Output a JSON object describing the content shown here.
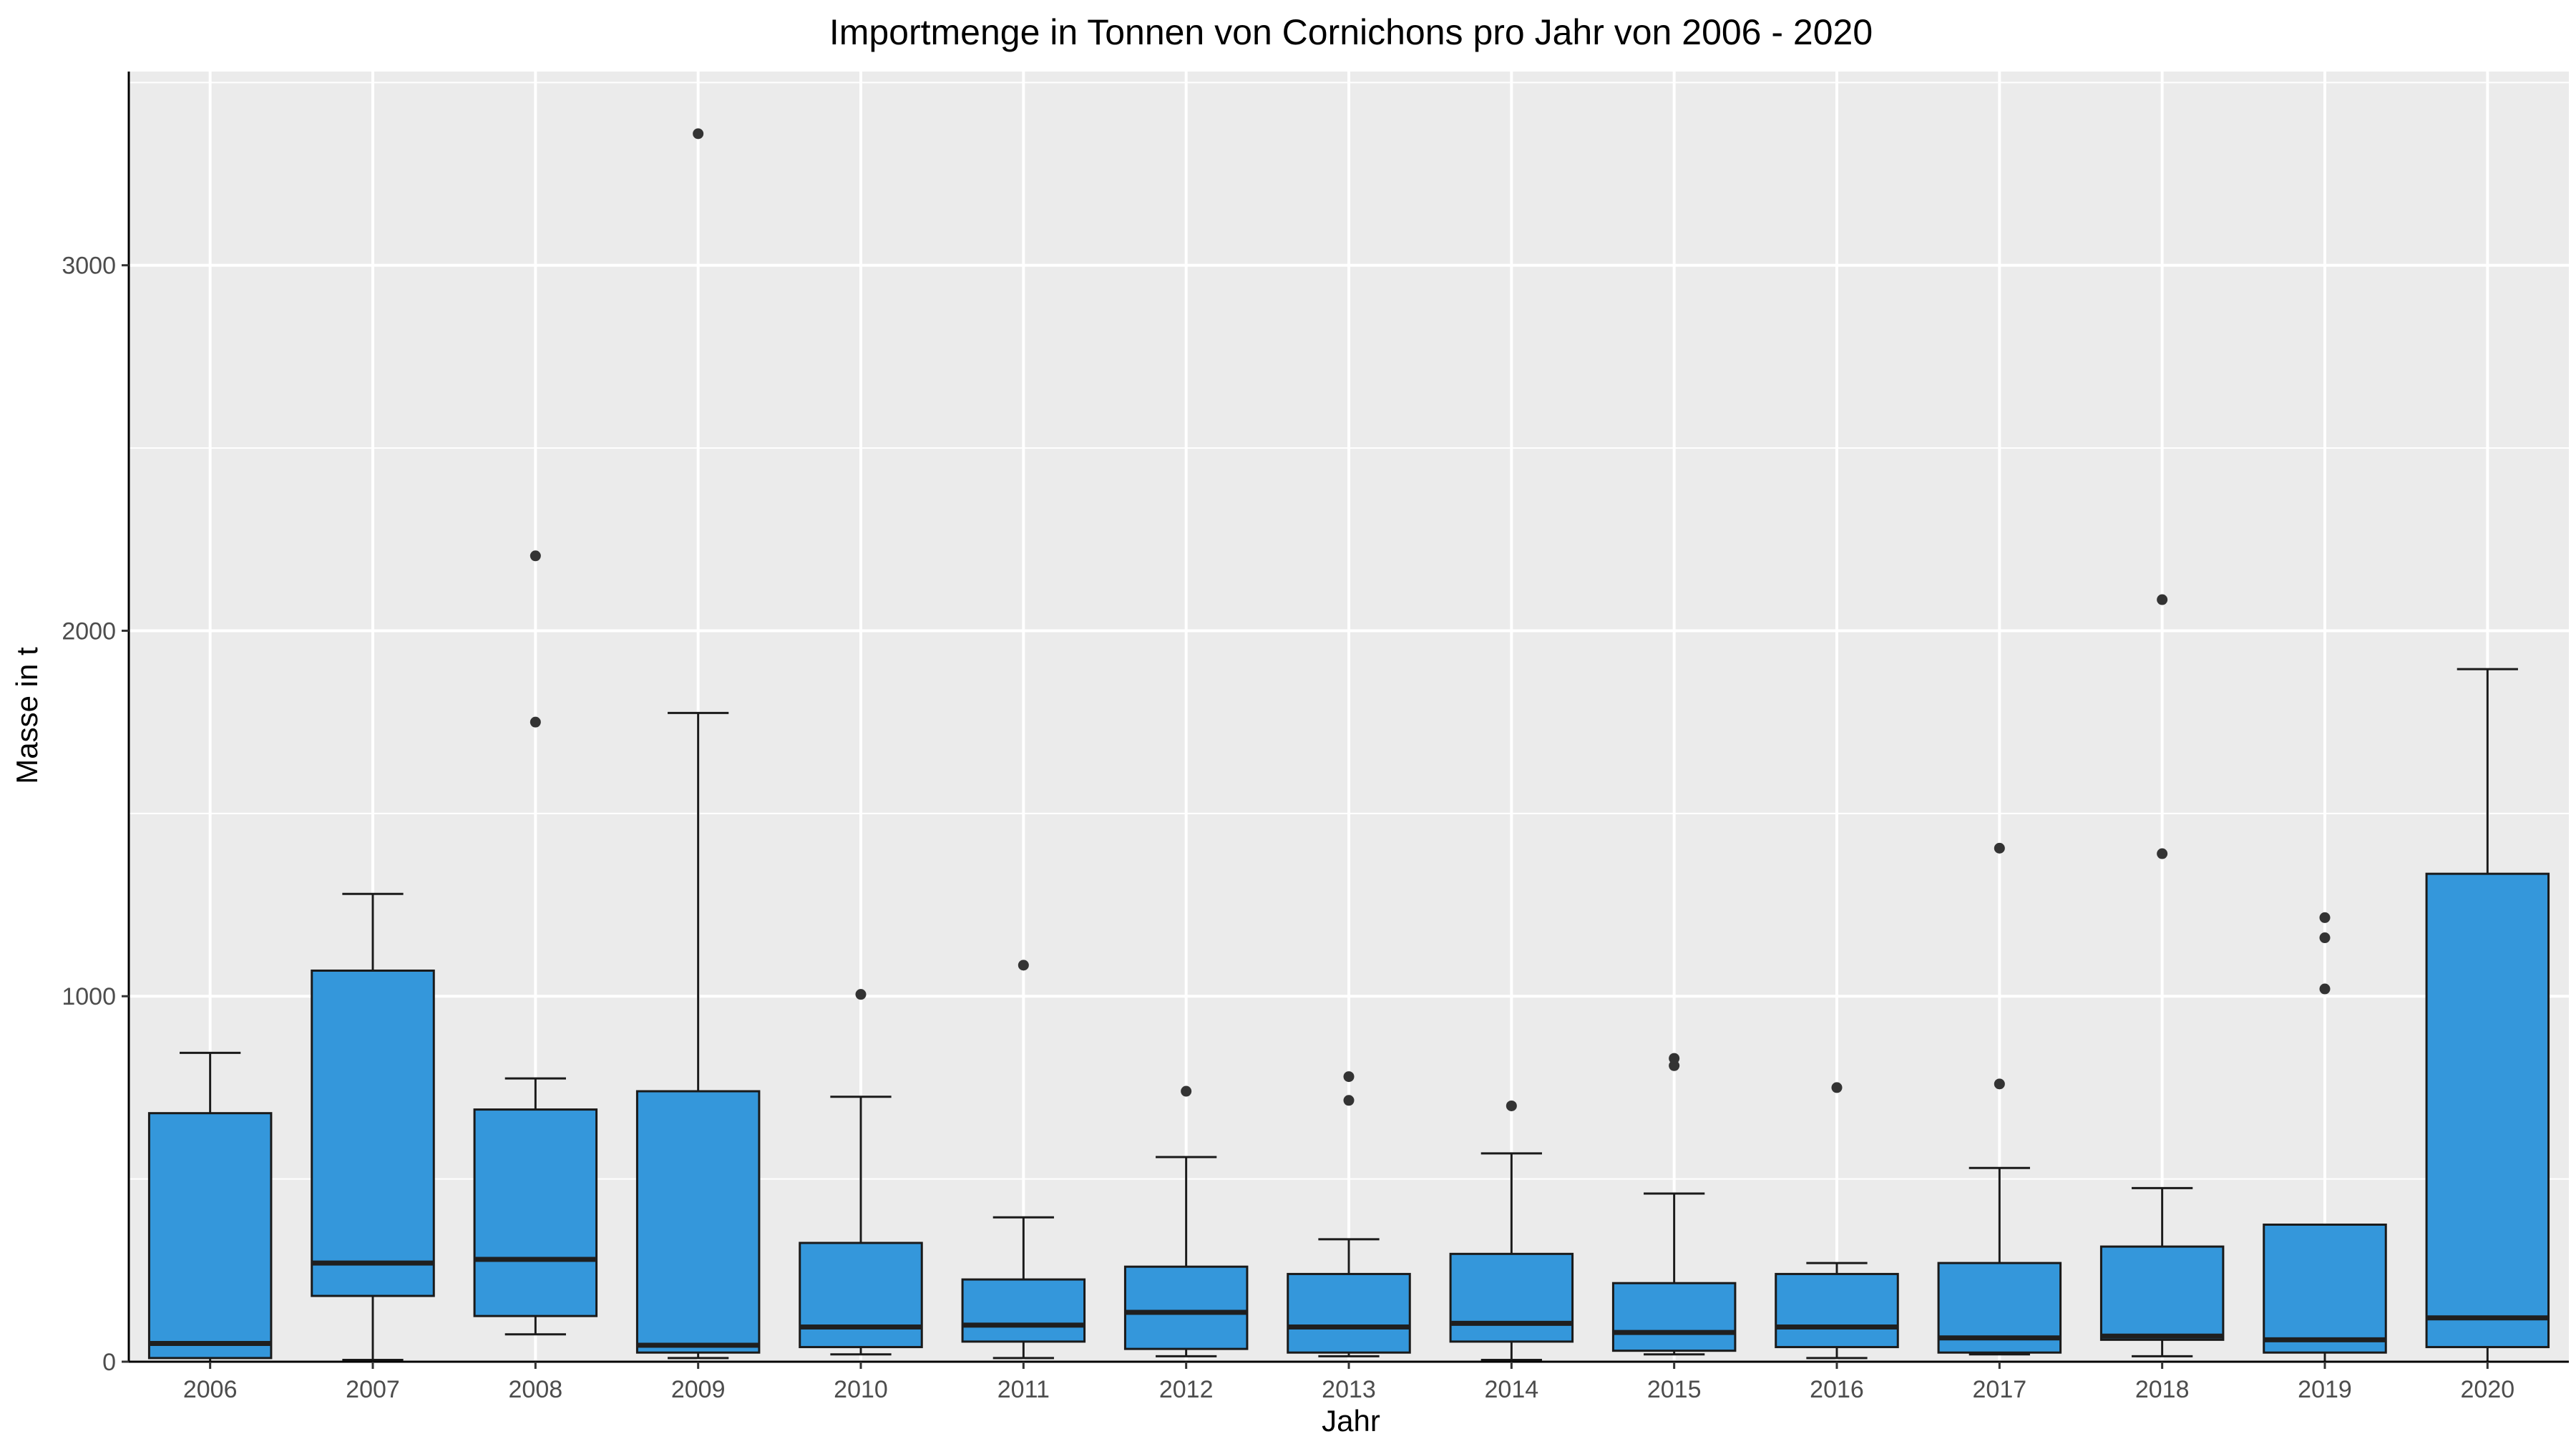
{
  "chart_data": {
    "type": "boxplot",
    "title": "Importmenge in Tonnen von Cornichons pro Jahr von 2006 - 2020",
    "xlabel": "Jahr",
    "ylabel": "Masse in t",
    "ylim": [
      0,
      3530
    ],
    "yticks": [
      0,
      1000,
      2000,
      3000
    ],
    "grid": true,
    "legend": "none",
    "colors": {
      "box_fill": "#3497db",
      "panel": "#ebebeb",
      "grid": "#ffffff",
      "line": "#1a1a1a"
    },
    "categories": [
      "2006",
      "2007",
      "2008",
      "2009",
      "2010",
      "2011",
      "2012",
      "2013",
      "2014",
      "2015",
      "2016",
      "2017",
      "2018",
      "2019",
      "2020"
    ],
    "boxes": [
      {
        "year": "2006",
        "whisker_low": 0,
        "q1": 10,
        "median": 50,
        "q3": 680,
        "whisker_high": 845,
        "outliers": []
      },
      {
        "year": "2007",
        "whisker_low": 5,
        "q1": 180,
        "median": 270,
        "q3": 1070,
        "whisker_high": 1280,
        "outliers": []
      },
      {
        "year": "2008",
        "whisker_low": 75,
        "q1": 125,
        "median": 280,
        "q3": 690,
        "whisker_high": 775,
        "outliers": [
          1750,
          2205
        ]
      },
      {
        "year": "2009",
        "whisker_low": 10,
        "q1": 25,
        "median": 45,
        "q3": 740,
        "whisker_high": 1775,
        "outliers": [
          3360
        ]
      },
      {
        "year": "2010",
        "whisker_low": 20,
        "q1": 40,
        "median": 95,
        "q3": 325,
        "whisker_high": 725,
        "outliers": [
          1005
        ]
      },
      {
        "year": "2011",
        "whisker_low": 10,
        "q1": 55,
        "median": 100,
        "q3": 225,
        "whisker_high": 395,
        "outliers": [
          1085
        ]
      },
      {
        "year": "2012",
        "whisker_low": 15,
        "q1": 35,
        "median": 135,
        "q3": 260,
        "whisker_high": 560,
        "outliers": [
          740
        ]
      },
      {
        "year": "2013",
        "whisker_low": 15,
        "q1": 25,
        "median": 95,
        "q3": 240,
        "whisker_high": 335,
        "outliers": [
          715,
          780
        ]
      },
      {
        "year": "2014",
        "whisker_low": 5,
        "q1": 55,
        "median": 105,
        "q3": 295,
        "whisker_high": 570,
        "outliers": [
          700
        ]
      },
      {
        "year": "2015",
        "whisker_low": 20,
        "q1": 30,
        "median": 80,
        "q3": 215,
        "whisker_high": 460,
        "outliers": [
          810,
          830
        ]
      },
      {
        "year": "2016",
        "whisker_low": 10,
        "q1": 40,
        "median": 95,
        "q3": 240,
        "whisker_high": 270,
        "outliers": [
          750
        ]
      },
      {
        "year": "2017",
        "whisker_low": 20,
        "q1": 25,
        "median": 65,
        "q3": 270,
        "whisker_high": 530,
        "outliers": [
          760,
          1405
        ]
      },
      {
        "year": "2018",
        "whisker_low": 15,
        "q1": 60,
        "median": 70,
        "q3": 315,
        "whisker_high": 475,
        "outliers": [
          1390,
          2085
        ]
      },
      {
        "year": "2019",
        "whisker_low": 0,
        "q1": 25,
        "median": 60,
        "q3": 375,
        "whisker_high": 375,
        "outliers": [
          1020,
          1160,
          1215
        ]
      },
      {
        "year": "2020",
        "whisker_low": 0,
        "q1": 40,
        "median": 120,
        "q3": 1335,
        "whisker_high": 1895,
        "outliers": []
      }
    ]
  }
}
